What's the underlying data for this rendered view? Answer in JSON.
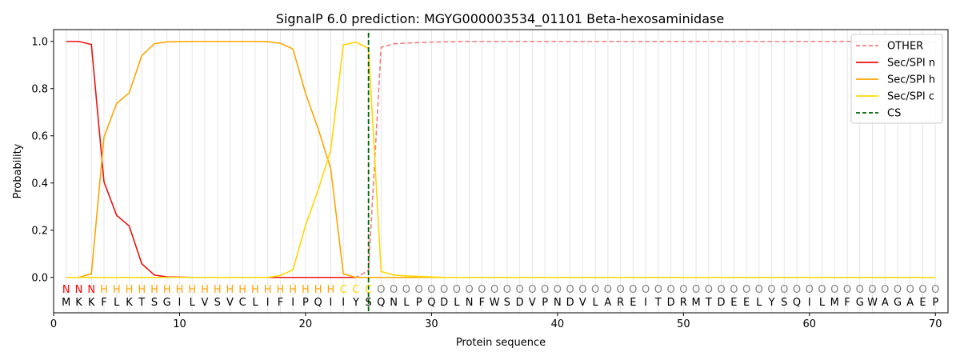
{
  "chart_data": {
    "type": "line",
    "title": "SignalP 6.0 prediction: MGYG000003534_01101 Beta-hexosaminidase",
    "xlabel": "Protein sequence",
    "ylabel": "Probability",
    "xlim": [
      0,
      71
    ],
    "ylim": [
      -0.15,
      1.05
    ],
    "xticks": [
      0,
      10,
      20,
      30,
      40,
      50,
      60,
      70
    ],
    "yticks": [
      0.0,
      0.2,
      0.4,
      0.6,
      0.8,
      1.0
    ],
    "xtick_labels": [
      "0",
      "10",
      "20",
      "30",
      "40",
      "50",
      "60",
      "70"
    ],
    "ytick_labels": [
      "0.0",
      "0.2",
      "0.4",
      "0.6",
      "0.8",
      "1.0"
    ],
    "legend_position": "top-right",
    "sequence": [
      "M",
      "K",
      "K",
      "F",
      "L",
      "K",
      "T",
      "S",
      "G",
      "I",
      "L",
      "V",
      "S",
      "V",
      "C",
      "L",
      "I",
      "F",
      "I",
      "P",
      "Q",
      "I",
      "I",
      "Y",
      "S",
      "Q",
      "N",
      "L",
      "P",
      "Q",
      "D",
      "L",
      "N",
      "F",
      "W",
      "S",
      "D",
      "V",
      "P",
      "N",
      "D",
      "V",
      "L",
      "A",
      "R",
      "E",
      "I",
      "T",
      "D",
      "R",
      "M",
      "T",
      "D",
      "E",
      "E",
      "L",
      "Y",
      "S",
      "Q",
      "I",
      "L",
      "M",
      "F",
      "G",
      "W",
      "A",
      "G",
      "A",
      "E",
      "P"
    ],
    "labels": [
      "N",
      "N",
      "N",
      "H",
      "H",
      "H",
      "H",
      "H",
      "H",
      "H",
      "H",
      "H",
      "H",
      "H",
      "H",
      "H",
      "H",
      "H",
      "H",
      "H",
      "H",
      "H",
      "C",
      "C",
      "C",
      "O",
      "O",
      "O",
      "O",
      "O",
      "O",
      "O",
      "O",
      "O",
      "O",
      "O",
      "O",
      "O",
      "O",
      "O",
      "O",
      "O",
      "O",
      "O",
      "O",
      "O",
      "O",
      "O",
      "O",
      "O",
      "O",
      "O",
      "O",
      "O",
      "O",
      "O",
      "O",
      "O",
      "O",
      "O",
      "O",
      "O",
      "O",
      "O",
      "O",
      "O",
      "O",
      "O",
      "O",
      "O"
    ],
    "label_colors": {
      "N": "#ff0000",
      "H": "#ffa500",
      "C": "#ffd700",
      "O": "#808080"
    },
    "x": [
      1,
      2,
      3,
      4,
      5,
      6,
      7,
      8,
      9,
      10,
      11,
      12,
      13,
      14,
      15,
      16,
      17,
      18,
      19,
      20,
      21,
      22,
      23,
      24,
      25,
      26,
      27,
      28,
      29,
      30,
      31,
      32,
      33,
      34,
      35,
      36,
      37,
      38,
      39,
      40,
      41,
      42,
      43,
      44,
      45,
      46,
      47,
      48,
      49,
      50,
      51,
      52,
      53,
      54,
      55,
      56,
      57,
      58,
      59,
      60,
      61,
      62,
      63,
      64,
      65,
      66,
      67,
      68,
      69,
      70
    ],
    "series": [
      {
        "name": "OTHER",
        "color": "#f08080",
        "dash": "dashed",
        "values": [
          0,
          0,
          0,
          0,
          0,
          0,
          0,
          0,
          0,
          0,
          0,
          0,
          0,
          0,
          0,
          0,
          0,
          0,
          0,
          0,
          0,
          0,
          0,
          0,
          0.03,
          0.975,
          0.99,
          0.993,
          0.995,
          0.997,
          0.998,
          0.999,
          1,
          1,
          1,
          1,
          1,
          1,
          1,
          1,
          1,
          1,
          1,
          1,
          1,
          1,
          1,
          1,
          1,
          1,
          1,
          1,
          1,
          1,
          1,
          1,
          1,
          1,
          1,
          1,
          1,
          1,
          1,
          1,
          1,
          1,
          1,
          1,
          1,
          1
        ]
      },
      {
        "name": "Sec/SPI n",
        "color": "#ee1111",
        "dash": "solid",
        "values": [
          1.0,
          1.0,
          0.987,
          0.405,
          0.263,
          0.218,
          0.058,
          0.01,
          0.002,
          0.001,
          0,
          0,
          0,
          0,
          0,
          0,
          0,
          0,
          0,
          0,
          0,
          0,
          0,
          0,
          0,
          0,
          0,
          0,
          0,
          0,
          0,
          0,
          0,
          0,
          0,
          0,
          0,
          0,
          0,
          0,
          0,
          0,
          0,
          0,
          0,
          0,
          0,
          0,
          0,
          0,
          0,
          0,
          0,
          0,
          0,
          0,
          0,
          0,
          0,
          0,
          0,
          0,
          0,
          0,
          0,
          0,
          0,
          0,
          0,
          0
        ]
      },
      {
        "name": "Sec/SPI h",
        "color": "#ffa500",
        "dash": "solid",
        "values": [
          0,
          0,
          0.015,
          0.595,
          0.737,
          0.782,
          0.94,
          0.99,
          0.998,
          0.999,
          1,
          1,
          1,
          1,
          1,
          1,
          0.999,
          0.992,
          0.968,
          0.78,
          0.63,
          0.46,
          0.015,
          0,
          0,
          0,
          0,
          0,
          0,
          0,
          0,
          0,
          0,
          0,
          0,
          0,
          0,
          0,
          0,
          0,
          0,
          0,
          0,
          0,
          0,
          0,
          0,
          0,
          0,
          0,
          0,
          0,
          0,
          0,
          0,
          0,
          0,
          0,
          0,
          0,
          0,
          0,
          0,
          0,
          0,
          0,
          0,
          0,
          0,
          0
        ]
      },
      {
        "name": "Sec/SPI c",
        "color": "#ffd700",
        "dash": "solid",
        "values": [
          0,
          0,
          0,
          0,
          0,
          0,
          0,
          0,
          0,
          0,
          0,
          0,
          0,
          0,
          0,
          0,
          0,
          0.008,
          0.032,
          0.22,
          0.37,
          0.54,
          0.985,
          0.997,
          0.97,
          0.025,
          0.01,
          0.006,
          0.004,
          0.002,
          0,
          0,
          0,
          0,
          0,
          0,
          0,
          0,
          0,
          0,
          0,
          0,
          0,
          0,
          0,
          0,
          0,
          0,
          0,
          0,
          0,
          0,
          0,
          0,
          0,
          0,
          0,
          0,
          0,
          0,
          0,
          0,
          0,
          0,
          0,
          0,
          0,
          0,
          0,
          0
        ]
      }
    ],
    "cleavage_site": {
      "name": "CS",
      "x": 25,
      "color": "#006400",
      "dash": "dashed"
    }
  }
}
